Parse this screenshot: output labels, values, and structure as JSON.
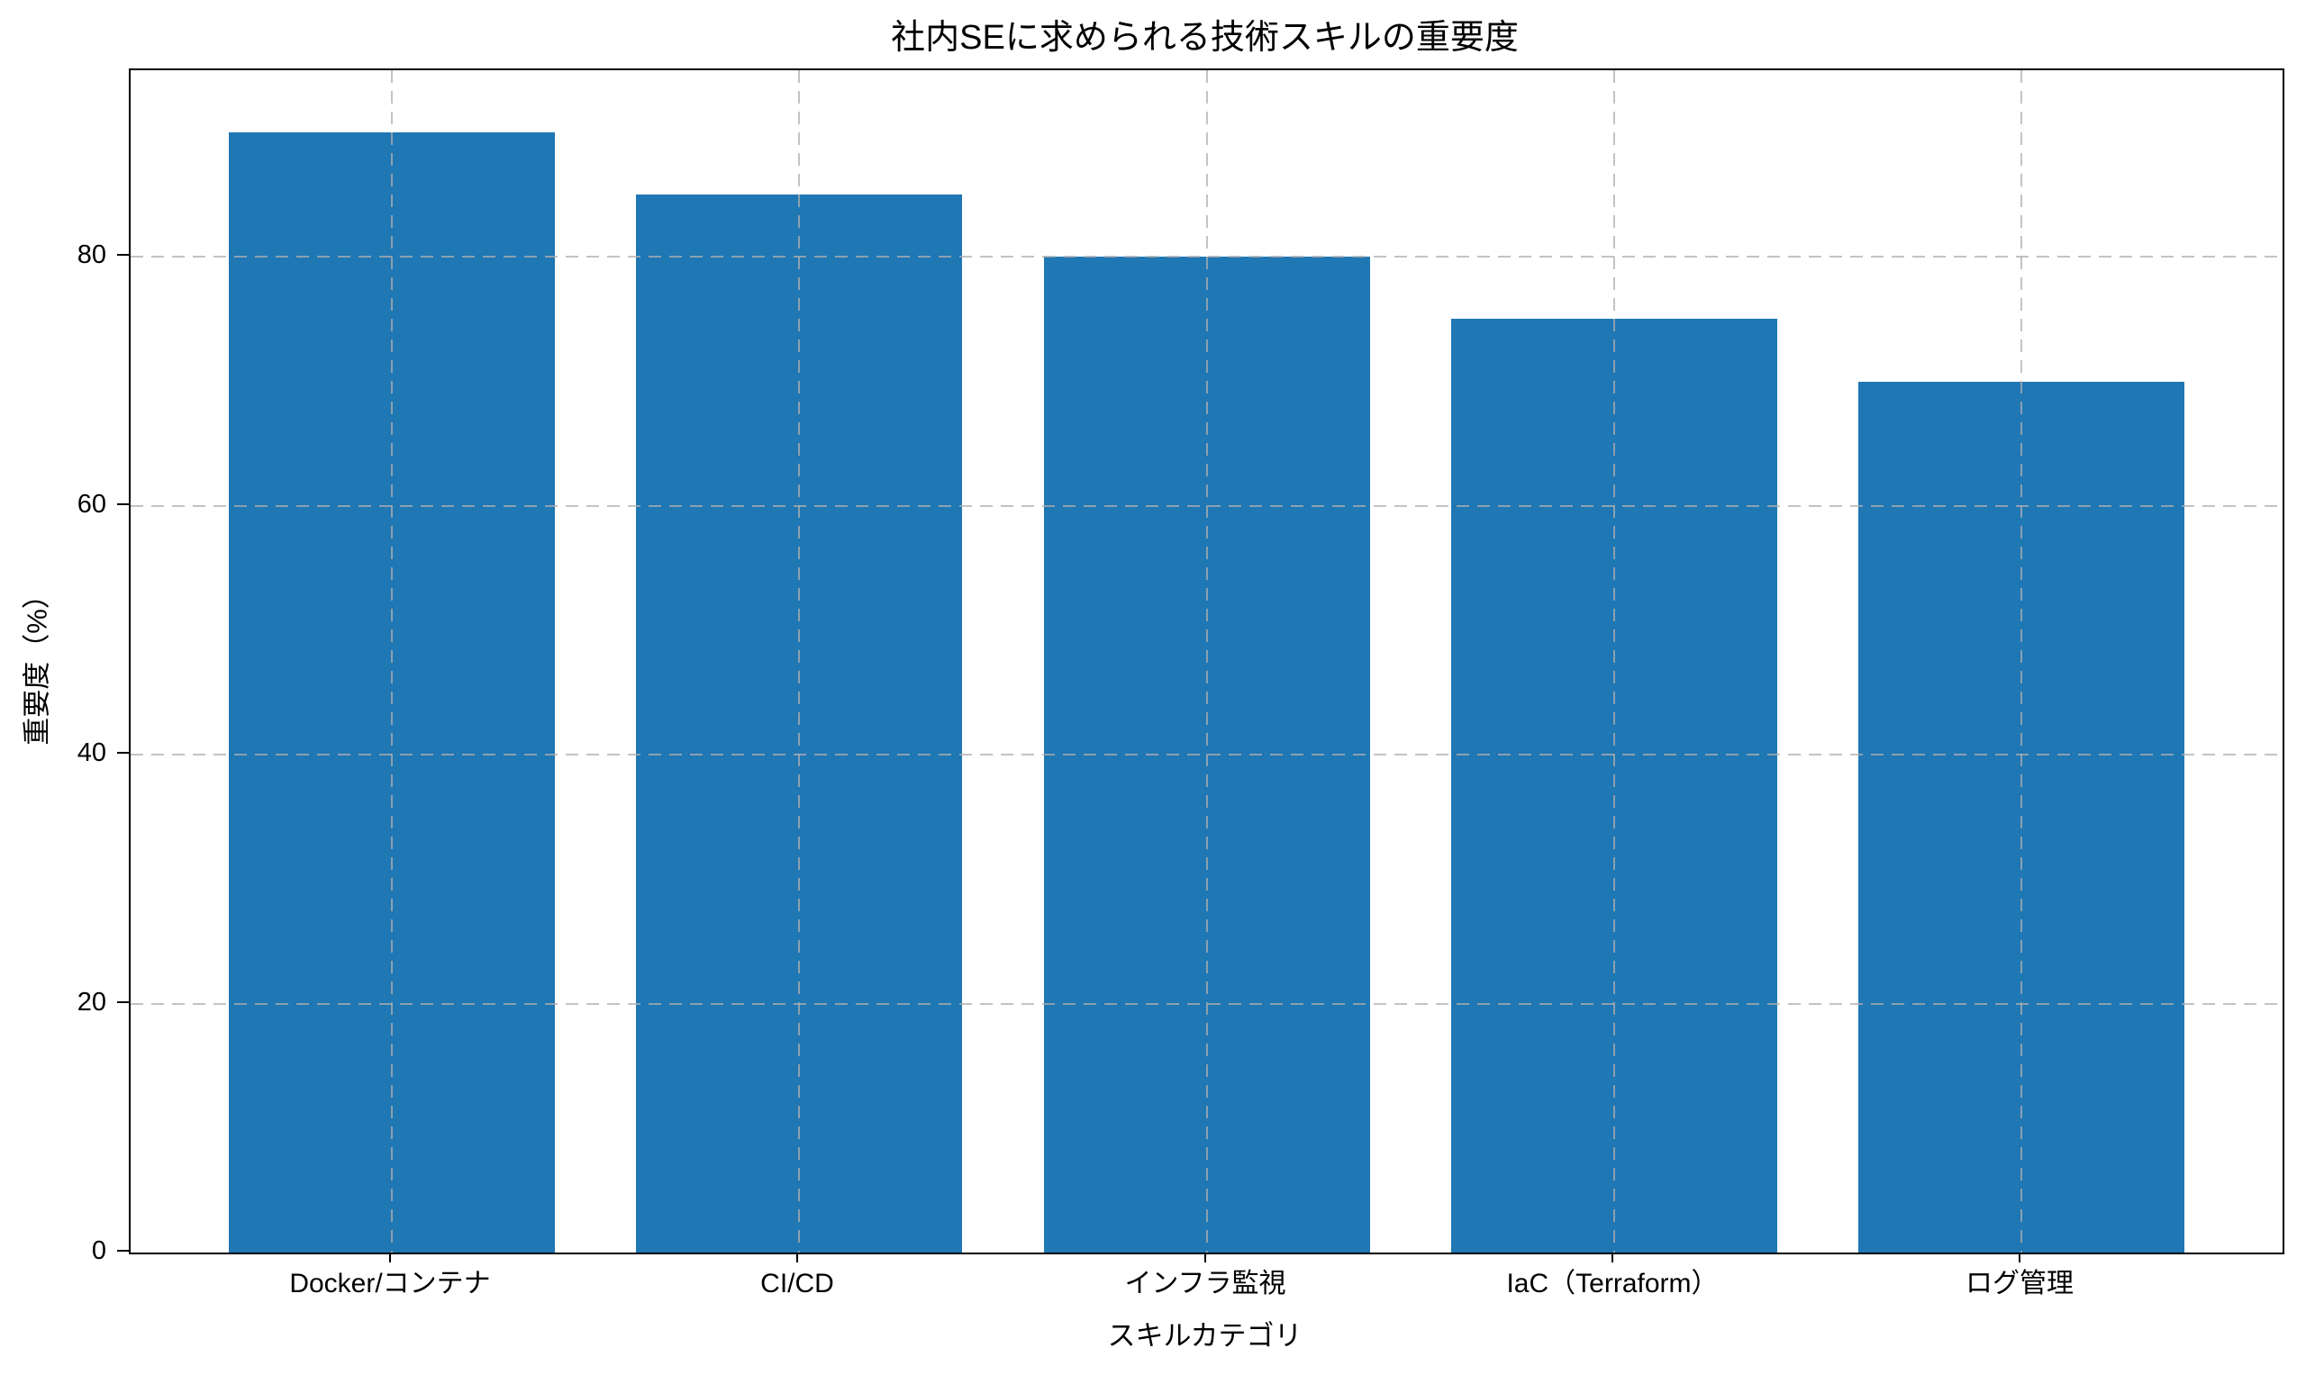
{
  "chart_data": {
    "type": "bar",
    "title": "社内SEに求められる技術スキルの重要度",
    "xlabel": "スキルカテゴリ",
    "ylabel": "重要度（%）",
    "categories": [
      "Docker/コンテナ",
      "CI/CD",
      "インフラ監視",
      "IaC（Terraform）",
      "ログ管理"
    ],
    "values": [
      90,
      85,
      80,
      75,
      70
    ],
    "ylim": [
      0,
      95
    ],
    "yticks": [
      0,
      20,
      40,
      60,
      80
    ],
    "bar_color": "#1f77b4",
    "grid": "dashed horizontal and vertical gridlines drawn over bars",
    "legend": "none"
  }
}
